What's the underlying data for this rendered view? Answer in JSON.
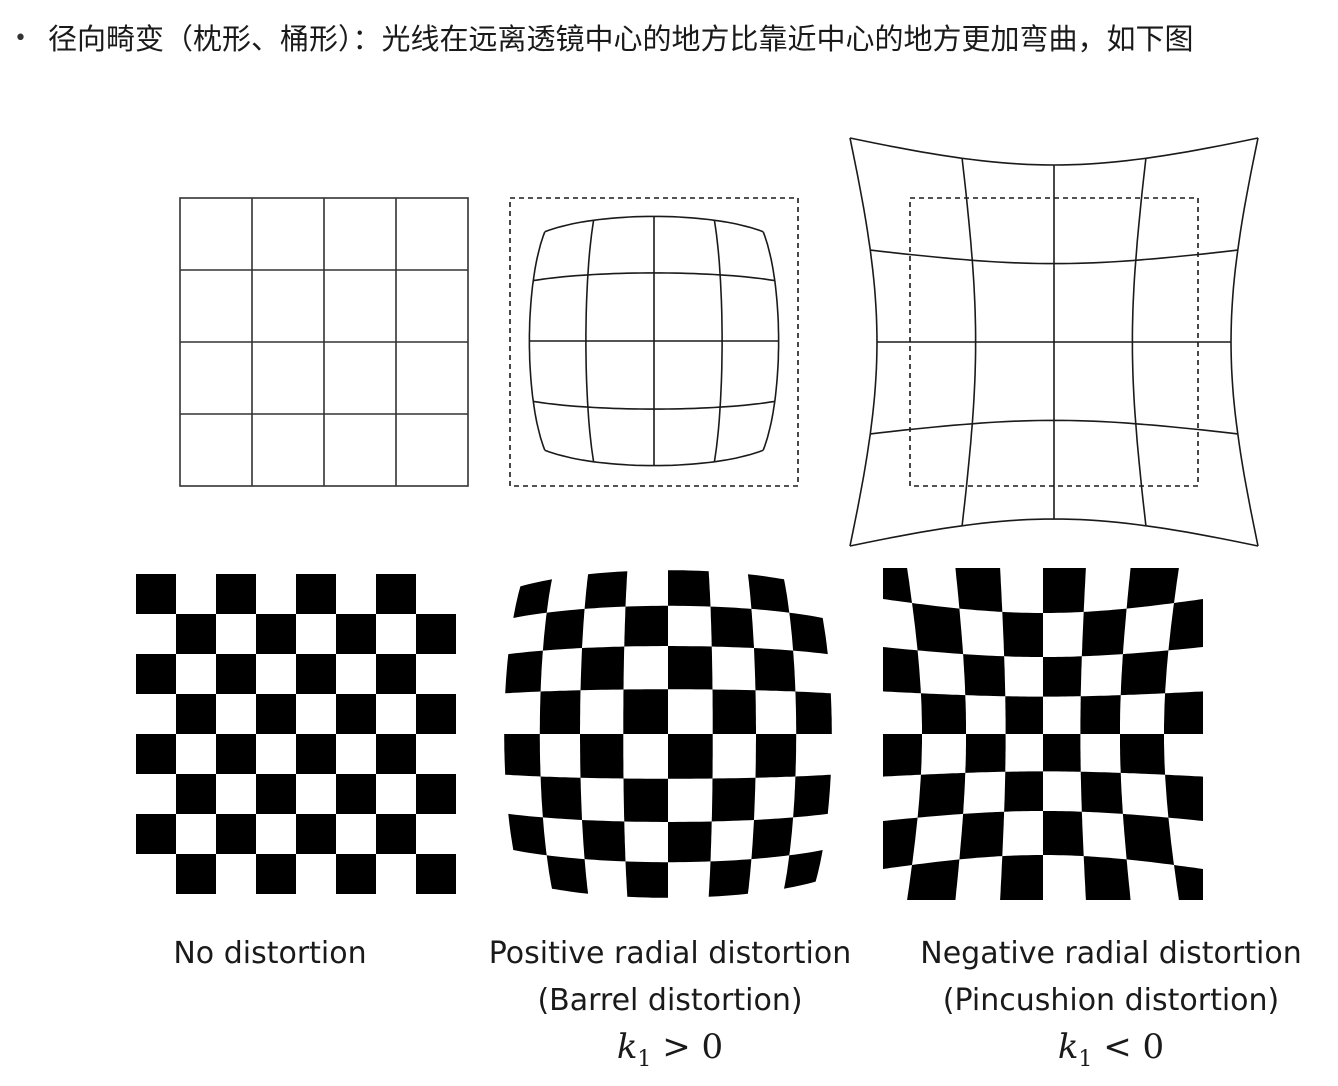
{
  "heading": {
    "bullet": "•",
    "text": "径向畸变（枕形、桶形）：光线在远离透镜中心的地方比靠近中心的地方更加弯曲，如下图"
  },
  "panels": [
    {
      "label": "No distortion",
      "subtitle": "",
      "k_symbol": "",
      "k_sub": "",
      "k_relation": ""
    },
    {
      "label": "Positive radial distortion",
      "subtitle": "(Barrel distortion)",
      "k_symbol": "k",
      "k_sub": "1",
      "k_relation": " > 0"
    },
    {
      "label": "Negative radial distortion",
      "subtitle": "(Pincushion distortion)",
      "k_symbol": "k",
      "k_sub": "1",
      "k_relation": " < 0"
    }
  ],
  "colors": {
    "ink": "#1a1a1a",
    "check_dark": "#000000",
    "check_light": "#ffffff"
  }
}
